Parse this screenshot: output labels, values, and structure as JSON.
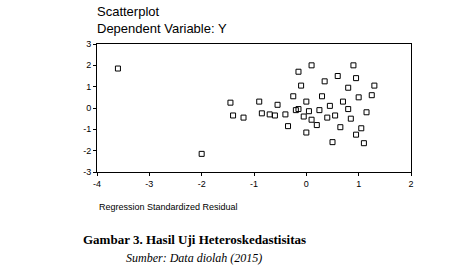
{
  "chart_data": {
    "type": "scatter",
    "title": "Scatterplot",
    "subtitle": "Dependent Variable: Y",
    "x_label": "Regression Standardized Residual",
    "x": [
      -3.6,
      -2.0,
      -1.45,
      -1.4,
      -1.2,
      -0.9,
      -0.85,
      -0.7,
      -0.6,
      -0.55,
      -0.4,
      -0.35,
      -0.25,
      -0.2,
      -0.15,
      -0.15,
      -0.1,
      -0.05,
      0.0,
      0.0,
      0.05,
      0.1,
      0.1,
      0.2,
      0.25,
      0.3,
      0.35,
      0.4,
      0.45,
      0.5,
      0.55,
      0.6,
      0.65,
      0.7,
      0.8,
      0.8,
      0.85,
      0.9,
      0.95,
      0.95,
      1.0,
      1.05,
      1.1,
      1.15,
      1.25,
      1.3
    ],
    "values": [
      1.85,
      -2.15,
      0.25,
      -0.35,
      -0.45,
      0.3,
      -0.25,
      -0.3,
      -0.35,
      0.15,
      -0.3,
      -0.85,
      0.55,
      -0.1,
      -0.05,
      1.7,
      1.05,
      -0.4,
      0.3,
      -1.15,
      -0.15,
      2.0,
      -0.55,
      -0.8,
      -0.1,
      0.55,
      1.25,
      -0.45,
      0.1,
      -1.6,
      -0.35,
      1.5,
      -0.9,
      0.3,
      0.95,
      -0.05,
      -0.5,
      2.0,
      1.4,
      -1.25,
      0.5,
      -0.95,
      -1.65,
      -0.2,
      0.6,
      1.05
    ],
    "color": "#000000",
    "marker": "square",
    "xlim": [
      -4,
      2
    ],
    "xticks": [
      -4,
      -3,
      -2,
      -1,
      0,
      1,
      2
    ],
    "ylim": [
      -3,
      3
    ],
    "yticks": [
      -3,
      -2,
      -1,
      0,
      1,
      2,
      3
    ],
    "grid": false
  },
  "caption": "Gambar 3. Hasil Uji Heteroskedastisitas",
  "source": "Sumber: Data diolah (2015)"
}
